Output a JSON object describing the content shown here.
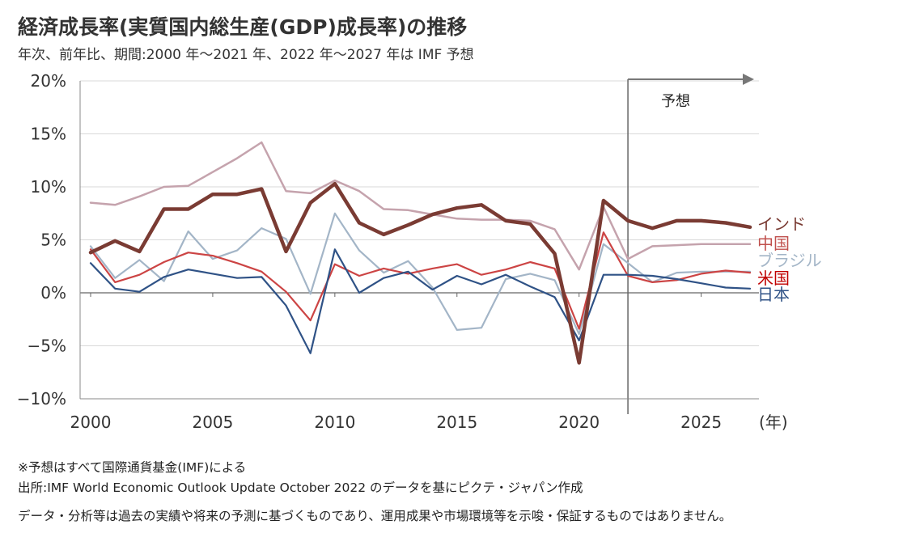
{
  "title": "経済成長率(実質国内総生産(GDP)成長率)の推移",
  "subtitle": "年次、前年比、期間:2000 年～2021 年、2022 年～2027 年は IMF 予想",
  "notes": [
    "※予想はすべて国際通貨基金(IMF)による",
    "出所:IMF World Economic Outlook Update October 2022 のデータを基にピクテ・ジャパン作成",
    "データ・分析等は過去の実績や将来の予測に基づくものであり、運用成果や市場環境等を示唆・保証するものではありません。"
  ],
  "chart_data": {
    "type": "line",
    "title": "経済成長率(実質国内総生産(GDP)成長率)の推移",
    "xlabel": "(年)",
    "ylabel": "",
    "xlim": [
      2000,
      2027
    ],
    "ylim": [
      -10,
      20
    ],
    "x_ticks": [
      2000,
      2005,
      2010,
      2015,
      2020,
      2025
    ],
    "x_tick_labels": [
      "2000",
      "2005",
      "2010",
      "2015",
      "2020",
      "2025"
    ],
    "y_ticks": [
      -10,
      -5,
      0,
      5,
      10,
      15,
      20
    ],
    "y_tick_labels": [
      "−10%",
      "−5%",
      "0%",
      "5%",
      "10%",
      "15%",
      "20%"
    ],
    "grid": "horizontal",
    "forecast_start": 2022,
    "forecast_label": "予想",
    "x": [
      2000,
      2001,
      2002,
      2003,
      2004,
      2005,
      2006,
      2007,
      2008,
      2009,
      2010,
      2011,
      2012,
      2013,
      2014,
      2015,
      2016,
      2017,
      2018,
      2019,
      2020,
      2021,
      2022,
      2023,
      2024,
      2025,
      2026,
      2027
    ],
    "series": [
      {
        "name": "中国",
        "color": "#c5a3ad",
        "width": 2.5,
        "values": [
          8.5,
          8.3,
          9.1,
          10.0,
          10.1,
          11.4,
          12.7,
          14.2,
          9.6,
          9.4,
          10.6,
          9.6,
          7.9,
          7.8,
          7.4,
          7.0,
          6.9,
          6.9,
          6.8,
          6.0,
          2.2,
          8.1,
          3.2,
          4.4,
          4.5,
          4.6,
          4.6,
          4.6
        ]
      },
      {
        "name": "ブラジル",
        "color": "#a3b5c7",
        "width": 2.2,
        "values": [
          4.4,
          1.4,
          3.1,
          1.1,
          5.8,
          3.2,
          4.0,
          6.1,
          5.1,
          -0.1,
          7.5,
          4.0,
          1.9,
          3.0,
          0.5,
          -3.5,
          -3.3,
          1.3,
          1.8,
          1.2,
          -3.9,
          4.6,
          2.8,
          1.0,
          1.9,
          2.0,
          2.0,
          2.0
        ]
      },
      {
        "name": "米国",
        "color": "#cc4444",
        "width": 2.2,
        "values": [
          4.1,
          1.0,
          1.7,
          2.9,
          3.8,
          3.5,
          2.8,
          2.0,
          0.1,
          -2.6,
          2.7,
          1.6,
          2.3,
          1.8,
          2.3,
          2.7,
          1.7,
          2.2,
          2.9,
          2.3,
          -3.4,
          5.7,
          1.6,
          1.0,
          1.2,
          1.8,
          2.1,
          1.9
        ]
      },
      {
        "name": "日本",
        "color": "#2f5286",
        "width": 2.2,
        "values": [
          2.8,
          0.4,
          0.1,
          1.5,
          2.2,
          1.8,
          1.4,
          1.5,
          -1.2,
          -5.7,
          4.1,
          0.0,
          1.4,
          2.0,
          0.3,
          1.6,
          0.8,
          1.7,
          0.6,
          -0.4,
          -4.5,
          1.7,
          1.7,
          1.6,
          1.3,
          0.9,
          0.5,
          0.4
        ]
      },
      {
        "name": "インド",
        "color": "#7a3b33",
        "width": 4.5,
        "values": [
          3.8,
          4.9,
          3.9,
          7.9,
          7.9,
          9.3,
          9.3,
          9.8,
          3.9,
          8.5,
          10.3,
          6.6,
          5.5,
          6.4,
          7.4,
          8.0,
          8.3,
          6.8,
          6.5,
          3.7,
          -6.6,
          8.7,
          6.8,
          6.1,
          6.8,
          6.8,
          6.6,
          6.2
        ]
      }
    ],
    "legend": [
      {
        "name": "インド",
        "color": "#7a3b33"
      },
      {
        "name": "中国",
        "color": "#c0504d"
      },
      {
        "name": "ブラジル",
        "color": "#a3b5c7"
      },
      {
        "name": "米国",
        "color": "#c00000"
      },
      {
        "name": "日本",
        "color": "#2f5286"
      }
    ],
    "legend_placement": "right"
  }
}
